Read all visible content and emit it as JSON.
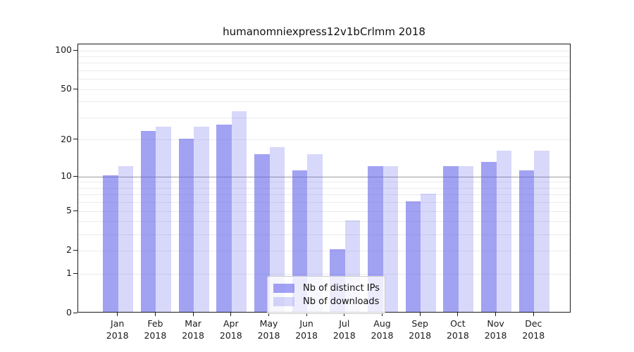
{
  "page": {
    "title": "humanomniexpress12v1bCrlmm 2018"
  },
  "chart_data": {
    "type": "bar",
    "title": "humanomniexpress12v1bCrlmm 2018",
    "months": [
      "Jan",
      "Feb",
      "Mar",
      "Apr",
      "May",
      "Jun",
      "Jul",
      "Aug",
      "Sep",
      "Oct",
      "Nov",
      "Dec"
    ],
    "year": "2018",
    "series": [
      {
        "name": "Nb of distinct IPs",
        "color": "rgba(100,100,235,0.6)",
        "values": [
          10,
          23,
          20,
          26,
          15,
          11,
          2,
          12,
          6,
          12,
          13,
          11
        ]
      },
      {
        "name": "Nb of downloads",
        "color": "rgba(100,100,235,0.25)",
        "values": [
          12,
          25,
          25,
          33,
          17,
          15,
          4,
          12,
          7,
          12,
          16,
          16
        ]
      }
    ],
    "ylabel": "",
    "xlabel": "",
    "yticks": [
      0,
      1,
      2,
      5,
      10,
      20,
      50,
      100
    ],
    "minor_gridlines": [
      3,
      4,
      6,
      7,
      8,
      9,
      30,
      40,
      60,
      70,
      80,
      90
    ],
    "emphasized_gridline": 10,
    "ylim": [
      0,
      100
    ],
    "scale": "log10(1+v)",
    "grid": true,
    "legend_position": "lower center",
    "colors": {
      "grid_minor": "#ebebeb",
      "grid_major": "#e6e6e6",
      "grid_emphasis": "#9b9b9b",
      "spine": "#1a1a1a",
      "text": "#1a1a1a"
    }
  }
}
